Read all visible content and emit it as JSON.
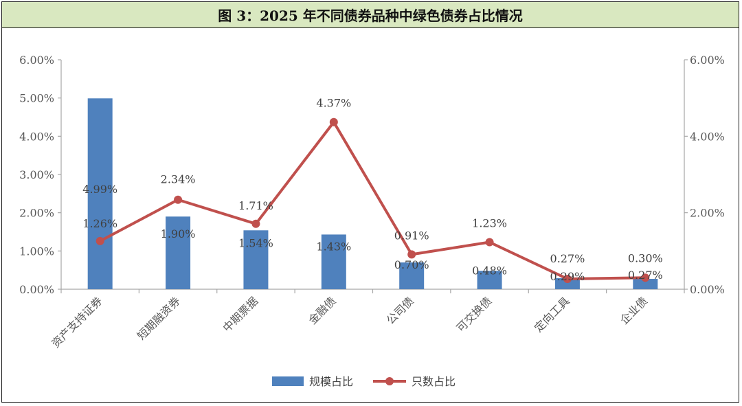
{
  "title": "图 3：2025 年不同债券品种中绿色债券占比情况",
  "colors": {
    "bar": "#4f81bd",
    "line": "#c0504d",
    "axis": "#a6a6a6",
    "text": "#595959",
    "title_bg": "#d9e8c0"
  },
  "chart_data": {
    "type": "bar",
    "categories": [
      "资产支持证券",
      "短期融资券",
      "中期票据",
      "金融债",
      "公司债",
      "可交换债",
      "定向工具",
      "企业债"
    ],
    "series": [
      {
        "name": "规模占比",
        "type": "bar",
        "axis": "left",
        "values": [
          4.99,
          1.9,
          1.54,
          1.43,
          0.7,
          0.48,
          0.29,
          0.27
        ],
        "labels": [
          "4.99%",
          "1.90%",
          "1.54%",
          "1.43%",
          "0.70%",
          "0.48%",
          "0.29%",
          "0.27%"
        ]
      },
      {
        "name": "只数占比",
        "type": "line",
        "axis": "right",
        "values": [
          1.26,
          2.34,
          1.71,
          4.37,
          0.91,
          1.23,
          0.27,
          0.3
        ],
        "labels": [
          "1.26%",
          "2.34%",
          "1.71%",
          "4.37%",
          "0.91%",
          "1.23%",
          "0.27%",
          "0.30%"
        ]
      }
    ],
    "left_axis": {
      "ylim": [
        0,
        6
      ],
      "ticks": [
        "0.00%",
        "1.00%",
        "2.00%",
        "3.00%",
        "4.00%",
        "5.00%",
        "6.00%"
      ]
    },
    "right_axis": {
      "ylim": [
        0,
        6
      ],
      "ticks": [
        "0.00%",
        "2.00%",
        "4.00%",
        "6.00%"
      ]
    },
    "grid": false,
    "legend": "bottom"
  }
}
